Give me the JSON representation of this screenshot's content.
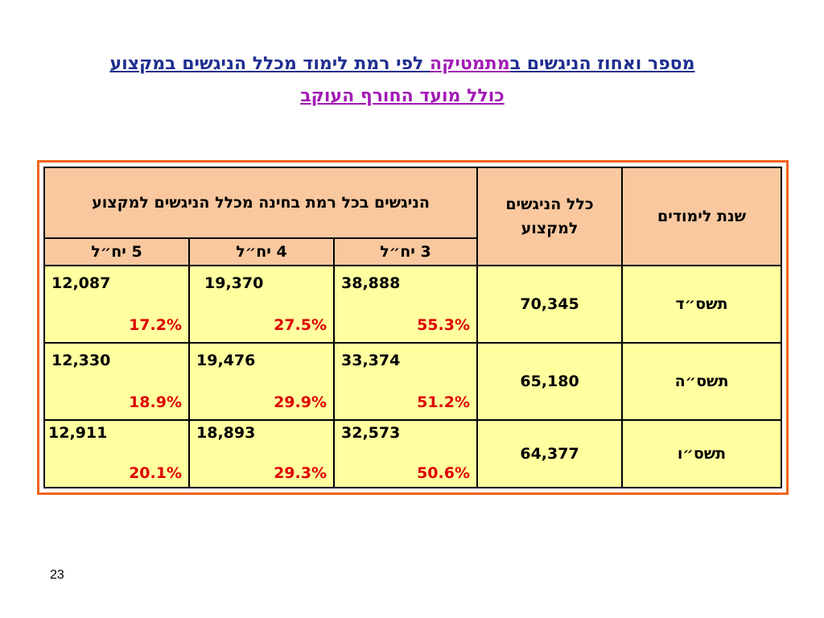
{
  "title": {
    "line1_part_blue_right": "מספר ואחוז הניגשים ב",
    "line1_part_purple": "מתמטיקה",
    "line1_part_blue_left": " לפי רמת לימוד מכלל הניגשים במקצוע",
    "line2": "כולל מועד החורף העוקב"
  },
  "table": {
    "headers": {
      "year": "שנת לימודים",
      "total": "כלל הניגשים למקצוע",
      "levels_group": "הניגשים בכל רמת בחינה מכלל הניגשים למקצוע",
      "level3": "3 יח״ל",
      "level4": "4 יח״ל",
      "level5": "5 יח״ל"
    },
    "rows": [
      {
        "year": "תשס״ד",
        "total": "70,345",
        "l3_count": "38,888",
        "l3_pct": "55.3%",
        "l4_count": "19,370",
        "l4_pct": "27.5%",
        "l5_count": "12,087",
        "l5_pct": "17.2%"
      },
      {
        "year": "תשס״ה",
        "total": "65,180",
        "l3_count": "33,374",
        "l3_pct": "51.2%",
        "l4_count": "19,476",
        "l4_pct": "29.9%",
        "l5_count": "12,330",
        "l5_pct": "18.9%"
      },
      {
        "year": "תשס״ו",
        "total": "64,377",
        "l3_count": "32,573",
        "l3_pct": "50.6%",
        "l4_count": "18,893",
        "l4_pct": "29.3%",
        "l5_count": "12,911",
        "l5_pct": "20.1%"
      }
    ]
  },
  "page_number": "23"
}
